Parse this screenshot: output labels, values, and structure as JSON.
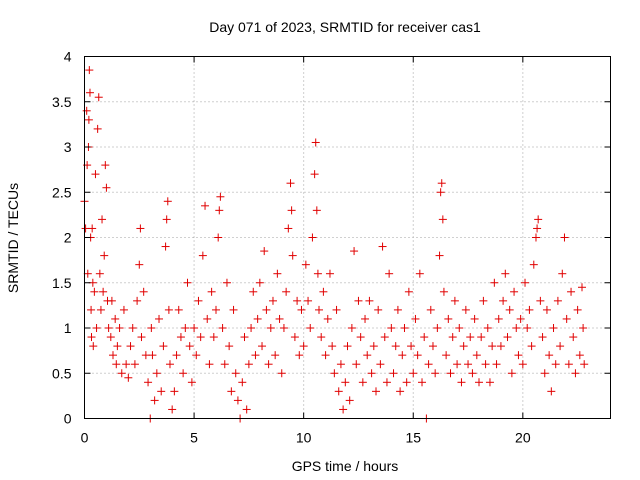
{
  "chart_data": {
    "type": "scatter",
    "title": "Day 071 of 2023, SRMTID for receiver cas1",
    "xlabel": "GPS time / hours",
    "ylabel": "SRMTID / TECUs",
    "xlim": [
      0,
      24
    ],
    "ylim": [
      0,
      4
    ],
    "xticks": [
      0,
      5,
      10,
      15,
      20
    ],
    "yticks": [
      0,
      0.5,
      1,
      1.5,
      2,
      2.5,
      3,
      3.5,
      4
    ],
    "ytick_labels": [
      "0",
      "0.5",
      "1",
      "1.5",
      "2",
      "2.5",
      "3",
      "3.5",
      "4"
    ],
    "grid": true,
    "marker": "plus",
    "series": [
      {
        "name": "SRMTID",
        "color": "#e00000",
        "points": [
          [
            0.0,
            2.4
          ],
          [
            0.05,
            2.1
          ],
          [
            0.1,
            3.4
          ],
          [
            0.12,
            2.8
          ],
          [
            0.15,
            1.6
          ],
          [
            0.18,
            3.0
          ],
          [
            0.2,
            3.3
          ],
          [
            0.22,
            3.85
          ],
          [
            0.25,
            3.6
          ],
          [
            0.28,
            2.0
          ],
          [
            0.3,
            1.2
          ],
          [
            0.32,
            0.9
          ],
          [
            0.35,
            2.1
          ],
          [
            0.38,
            1.5
          ],
          [
            0.4,
            0.8
          ],
          [
            0.45,
            1.4
          ],
          [
            0.5,
            2.7
          ],
          [
            0.55,
            1.0
          ],
          [
            0.6,
            3.2
          ],
          [
            0.65,
            3.55
          ],
          [
            0.7,
            1.6
          ],
          [
            0.75,
            1.2
          ],
          [
            0.8,
            2.2
          ],
          [
            0.85,
            1.4
          ],
          [
            0.9,
            1.8
          ],
          [
            0.95,
            2.8
          ],
          [
            1.0,
            2.55
          ],
          [
            1.05,
            1.3
          ],
          [
            1.1,
            1.0
          ],
          [
            1.2,
            0.9
          ],
          [
            1.25,
            1.3
          ],
          [
            1.3,
            0.7
          ],
          [
            1.4,
            1.1
          ],
          [
            1.45,
            0.6
          ],
          [
            1.5,
            0.8
          ],
          [
            1.6,
            1.0
          ],
          [
            1.7,
            0.5
          ],
          [
            1.8,
            1.2
          ],
          [
            1.9,
            0.6
          ],
          [
            2.0,
            0.45
          ],
          [
            2.1,
            0.8
          ],
          [
            2.2,
            1.0
          ],
          [
            2.3,
            0.6
          ],
          [
            2.4,
            1.3
          ],
          [
            2.5,
            1.7
          ],
          [
            2.55,
            2.1
          ],
          [
            2.6,
            0.9
          ],
          [
            2.7,
            1.4
          ],
          [
            2.8,
            0.7
          ],
          [
            2.9,
            0.4
          ],
          [
            3.0,
            0.0
          ],
          [
            3.05,
            1.0
          ],
          [
            3.1,
            0.7
          ],
          [
            3.2,
            0.2
          ],
          [
            3.3,
            0.5
          ],
          [
            3.4,
            1.1
          ],
          [
            3.5,
            0.3
          ],
          [
            3.6,
            0.8
          ],
          [
            3.7,
            1.9
          ],
          [
            3.75,
            2.2
          ],
          [
            3.8,
            2.4
          ],
          [
            3.85,
            1.2
          ],
          [
            3.9,
            0.6
          ],
          [
            4.0,
            0.1
          ],
          [
            4.1,
            0.3
          ],
          [
            4.2,
            0.7
          ],
          [
            4.3,
            1.2
          ],
          [
            4.4,
            0.9
          ],
          [
            4.5,
            0.5
          ],
          [
            4.6,
            1.0
          ],
          [
            4.7,
            1.5
          ],
          [
            4.8,
            0.8
          ],
          [
            4.9,
            0.4
          ],
          [
            5.0,
            1.0
          ],
          [
            5.1,
            0.7
          ],
          [
            5.2,
            1.3
          ],
          [
            5.3,
            0.9
          ],
          [
            5.4,
            1.8
          ],
          [
            5.5,
            2.35
          ],
          [
            5.6,
            1.1
          ],
          [
            5.7,
            0.6
          ],
          [
            5.8,
            1.4
          ],
          [
            5.9,
            0.9
          ],
          [
            6.0,
            1.2
          ],
          [
            6.1,
            2.0
          ],
          [
            6.15,
            2.3
          ],
          [
            6.2,
            2.45
          ],
          [
            6.3,
            1.0
          ],
          [
            6.4,
            0.6
          ],
          [
            6.5,
            1.5
          ],
          [
            6.6,
            0.8
          ],
          [
            6.7,
            0.3
          ],
          [
            6.8,
            1.2
          ],
          [
            6.9,
            0.5
          ],
          [
            7.0,
            0.2
          ],
          [
            7.1,
            0.0
          ],
          [
            7.2,
            0.4
          ],
          [
            7.3,
            0.9
          ],
          [
            7.4,
            0.1
          ],
          [
            7.5,
            0.6
          ],
          [
            7.6,
            1.0
          ],
          [
            7.7,
            1.4
          ],
          [
            7.8,
            0.7
          ],
          [
            7.9,
            1.1
          ],
          [
            8.0,
            1.5
          ],
          [
            8.1,
            0.8
          ],
          [
            8.2,
            1.85
          ],
          [
            8.3,
            1.2
          ],
          [
            8.4,
            0.6
          ],
          [
            8.5,
            1.0
          ],
          [
            8.6,
            1.3
          ],
          [
            8.7,
            0.7
          ],
          [
            8.8,
            1.6
          ],
          [
            8.9,
            1.1
          ],
          [
            9.0,
            0.5
          ],
          [
            9.1,
            1.0
          ],
          [
            9.2,
            1.4
          ],
          [
            9.3,
            2.1
          ],
          [
            9.4,
            2.6
          ],
          [
            9.45,
            2.3
          ],
          [
            9.5,
            1.8
          ],
          [
            9.6,
            0.9
          ],
          [
            9.7,
            1.3
          ],
          [
            9.8,
            0.7
          ],
          [
            9.9,
            1.2
          ],
          [
            10.0,
            0.8
          ],
          [
            10.1,
            1.7
          ],
          [
            10.2,
            1.3
          ],
          [
            10.3,
            1.0
          ],
          [
            10.4,
            2.0
          ],
          [
            10.5,
            2.7
          ],
          [
            10.55,
            3.05
          ],
          [
            10.6,
            2.3
          ],
          [
            10.65,
            1.6
          ],
          [
            10.7,
            1.2
          ],
          [
            10.8,
            0.9
          ],
          [
            10.9,
            1.4
          ],
          [
            11.0,
            0.7
          ],
          [
            11.1,
            1.1
          ],
          [
            11.2,
            1.6
          ],
          [
            11.3,
            0.8
          ],
          [
            11.4,
            0.5
          ],
          [
            11.5,
            1.2
          ],
          [
            11.6,
            0.3
          ],
          [
            11.7,
            0.6
          ],
          [
            11.8,
            0.1
          ],
          [
            11.9,
            0.4
          ],
          [
            12.0,
            0.8
          ],
          [
            12.1,
            0.2
          ],
          [
            12.2,
            1.0
          ],
          [
            12.3,
            1.85
          ],
          [
            12.4,
            0.6
          ],
          [
            12.5,
            1.3
          ],
          [
            12.6,
            0.9
          ],
          [
            12.7,
            0.4
          ],
          [
            12.8,
            1.1
          ],
          [
            12.9,
            0.7
          ],
          [
            13.0,
            1.3
          ],
          [
            13.1,
            0.5
          ],
          [
            13.2,
            0.8
          ],
          [
            13.3,
            0.3
          ],
          [
            13.4,
            1.2
          ],
          [
            13.5,
            0.6
          ],
          [
            13.6,
            1.9
          ],
          [
            13.7,
            0.9
          ],
          [
            13.8,
            0.4
          ],
          [
            13.9,
            1.6
          ],
          [
            14.0,
            1.0
          ],
          [
            14.1,
            0.5
          ],
          [
            14.2,
            0.8
          ],
          [
            14.3,
            1.2
          ],
          [
            14.4,
            0.3
          ],
          [
            14.5,
            0.7
          ],
          [
            14.6,
            1.0
          ],
          [
            14.7,
            0.4
          ],
          [
            14.8,
            1.4
          ],
          [
            14.9,
            0.8
          ],
          [
            15.0,
            0.5
          ],
          [
            15.1,
            1.1
          ],
          [
            15.2,
            0.7
          ],
          [
            15.3,
            1.6
          ],
          [
            15.4,
            0.4
          ],
          [
            15.5,
            0.9
          ],
          [
            15.6,
            0.0
          ],
          [
            15.7,
            0.6
          ],
          [
            15.8,
            1.2
          ],
          [
            15.9,
            0.8
          ],
          [
            16.0,
            0.5
          ],
          [
            16.1,
            1.0
          ],
          [
            16.2,
            1.8
          ],
          [
            16.25,
            2.5
          ],
          [
            16.3,
            2.6
          ],
          [
            16.35,
            2.2
          ],
          [
            16.4,
            1.4
          ],
          [
            16.5,
            0.7
          ],
          [
            16.6,
            1.1
          ],
          [
            16.7,
            0.5
          ],
          [
            16.8,
            0.9
          ],
          [
            16.9,
            1.3
          ],
          [
            17.0,
            0.6
          ],
          [
            17.1,
            1.0
          ],
          [
            17.2,
            0.4
          ],
          [
            17.3,
            0.8
          ],
          [
            17.4,
            1.2
          ],
          [
            17.5,
            0.6
          ],
          [
            17.6,
            0.9
          ],
          [
            17.7,
            0.5
          ],
          [
            17.8,
            1.1
          ],
          [
            17.9,
            0.7
          ],
          [
            18.0,
            0.4
          ],
          [
            18.1,
            0.9
          ],
          [
            18.2,
            1.3
          ],
          [
            18.3,
            0.6
          ],
          [
            18.4,
            1.0
          ],
          [
            18.5,
            0.4
          ],
          [
            18.6,
            0.8
          ],
          [
            18.7,
            1.5
          ],
          [
            18.8,
            0.6
          ],
          [
            18.9,
            1.1
          ],
          [
            19.0,
            0.8
          ],
          [
            19.1,
            1.3
          ],
          [
            19.2,
            1.6
          ],
          [
            19.3,
            0.9
          ],
          [
            19.4,
            1.2
          ],
          [
            19.5,
            0.5
          ],
          [
            19.6,
            1.4
          ],
          [
            19.7,
            1.0
          ],
          [
            19.8,
            0.7
          ],
          [
            19.9,
            1.1
          ],
          [
            20.0,
            0.6
          ],
          [
            20.1,
            1.5
          ],
          [
            20.2,
            1.0
          ],
          [
            20.3,
            1.2
          ],
          [
            20.4,
            0.8
          ],
          [
            20.5,
            1.7
          ],
          [
            20.6,
            2.0
          ],
          [
            20.65,
            2.1
          ],
          [
            20.7,
            2.2
          ],
          [
            20.8,
            1.3
          ],
          [
            20.9,
            0.9
          ],
          [
            21.0,
            0.5
          ],
          [
            21.1,
            1.2
          ],
          [
            21.2,
            0.7
          ],
          [
            21.3,
            0.3
          ],
          [
            21.4,
            1.0
          ],
          [
            21.5,
            0.6
          ],
          [
            21.6,
            1.3
          ],
          [
            21.7,
            0.8
          ],
          [
            21.8,
            1.6
          ],
          [
            21.9,
            2.0
          ],
          [
            22.0,
            1.1
          ],
          [
            22.1,
            0.6
          ],
          [
            22.2,
            1.4
          ],
          [
            22.3,
            0.9
          ],
          [
            22.4,
            0.5
          ],
          [
            22.5,
            1.2
          ],
          [
            22.6,
            0.7
          ],
          [
            22.7,
            1.45
          ],
          [
            22.75,
            1.0
          ],
          [
            22.8,
            0.6
          ]
        ]
      }
    ]
  }
}
